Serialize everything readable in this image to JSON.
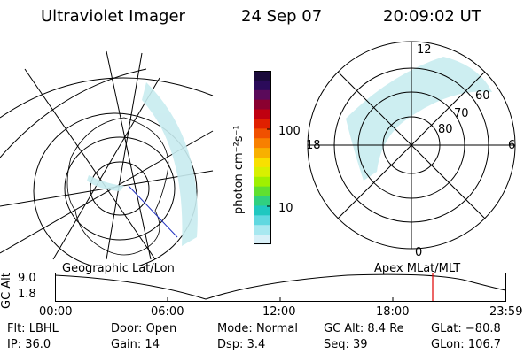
{
  "header": {
    "instrument": "Ultraviolet Imager",
    "date": "24 Sep 07",
    "time": "20:09:02 UT"
  },
  "colorbar": {
    "label": "photon cm⁻²s⁻¹",
    "ticks": [
      "100",
      "10"
    ],
    "scale": "log",
    "colors": [
      "#1a0a3a",
      "#2b0b5a",
      "#5a0a5a",
      "#8a0030",
      "#c00010",
      "#e02000",
      "#f05000",
      "#f88000",
      "#f8b000",
      "#f8e000",
      "#d8f000",
      "#a0f000",
      "#60e030",
      "#30d080",
      "#20c8c0",
      "#60d8e0",
      "#a8e8f0",
      "#d8f0f8"
    ]
  },
  "left_map": {
    "caption": "Geographic Lat/Lon"
  },
  "right_map": {
    "caption": "Apex MLat/MLT",
    "mlt_labels": {
      "top": "12",
      "left": "18",
      "right": "6",
      "bottom": "0"
    },
    "lat_labels": [
      "60",
      "70",
      "80"
    ]
  },
  "timeline": {
    "axis_label": "GC Alt",
    "y_ticks": [
      "9.0",
      "1.8"
    ],
    "x_ticks": [
      "00:00",
      "06:00",
      "12:00",
      "18:00",
      "23:59"
    ],
    "current_time_marker": "20:09",
    "marker_color": "#e00000"
  },
  "footer": {
    "row1": [
      {
        "label": "Flt:",
        "value": "LBHL"
      },
      {
        "label": "Door:",
        "value": "Open"
      },
      {
        "label": "Mode:",
        "value": "Normal"
      },
      {
        "label": "GC Alt:",
        "value": "8.4 Re"
      },
      {
        "label": "GLat:",
        "value": "−80.8"
      }
    ],
    "row2": [
      {
        "label": "IP:",
        "value": "36.0"
      },
      {
        "label": "Gain:",
        "value": "14"
      },
      {
        "label": "Dsp:",
        "value": "3.4"
      },
      {
        "label": "Seq:",
        "value": "39"
      },
      {
        "label": "GLon:",
        "value": "106.7"
      }
    ]
  }
}
